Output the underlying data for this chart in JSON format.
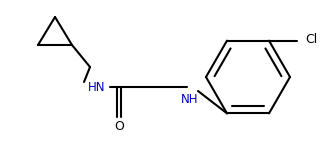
{
  "bg_color": "#ffffff",
  "line_color": "#000000",
  "nh_color": "#0000cd",
  "line_width": 1.5,
  "figsize": [
    3.32,
    1.67
  ],
  "dpi": 100,
  "xlim": [
    0,
    332
  ],
  "ylim": [
    0,
    167
  ]
}
